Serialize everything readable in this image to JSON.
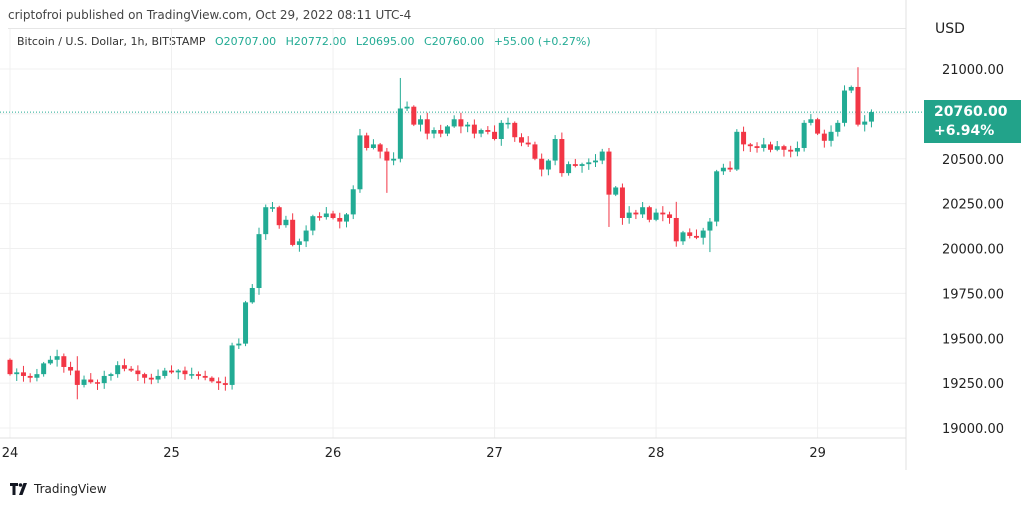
{
  "header": {
    "published": "criptofroi published on TradingView.com, Oct 29, 2022 08:11 UTC-4",
    "symbol": "Bitcoin / U.S. Dollar, 1h, BITSTAMP",
    "open": "O20707.00",
    "high": "H20772.00",
    "low": "L20695.00",
    "close": "C20760.00",
    "change": "+55.00 (+0.27%)"
  },
  "price_axis": {
    "currency": "USD"
  },
  "last_price": {
    "price": "20760.00",
    "change_pct": "+6.94%"
  },
  "footer": {
    "brand": "TradingView"
  },
  "colors": {
    "up": "#22ab94",
    "down": "#f23645",
    "grid": "#f0f0f0",
    "last_line": "#22ab94"
  },
  "chart_data": {
    "type": "candlestick",
    "title": "Bitcoin / U.S. Dollar, 1h, BITSTAMP",
    "x_unit": "hour index from Oct 24 00:00",
    "ylim": [
      18900,
      21200
    ],
    "y_ticks": [
      19000,
      19250,
      19500,
      19750,
      20000,
      20250,
      20500,
      20750,
      21000
    ],
    "y_tick_labels": [
      "19000.00",
      "19250.00",
      "19500.00",
      "19750.00",
      "20000.00",
      "20250.00",
      "20500.00",
      "20750.00",
      "21000.00"
    ],
    "x_ticks": [
      0,
      24,
      48,
      72,
      96,
      120
    ],
    "x_tick_labels": [
      "24",
      "25",
      "26",
      "27",
      "28",
      "29"
    ],
    "last_price": 20760,
    "first_open": 19380,
    "closes": [
      19300,
      19310,
      19290,
      19280,
      19300,
      19360,
      19380,
      19400,
      19340,
      19320,
      19240,
      19270,
      19255,
      19250,
      19290,
      19300,
      19350,
      19330,
      19320,
      19300,
      19280,
      19270,
      19290,
      19320,
      19310,
      19320,
      19300,
      19300,
      19290,
      19280,
      19260,
      19250,
      19240,
      19460,
      19470,
      19700,
      19780,
      20080,
      20230,
      20230,
      20130,
      20160,
      20020,
      20040,
      20100,
      20180,
      20175,
      20195,
      20170,
      20150,
      20190,
      20330,
      20630,
      20560,
      20580,
      20540,
      20490,
      20500,
      20780,
      20790,
      20690,
      20720,
      20640,
      20660,
      20640,
      20680,
      20720,
      20680,
      20690,
      20640,
      20660,
      20650,
      20610,
      20700,
      20700,
      20620,
      20590,
      20580,
      20500,
      20440,
      20490,
      20610,
      20420,
      20470,
      20460,
      20470,
      20480,
      20490,
      20540,
      20300,
      20340,
      20170,
      20200,
      20190,
      20230,
      20160,
      20200,
      20190,
      20170,
      20040,
      20090,
      20070,
      20060,
      20100,
      20150,
      20430,
      20450,
      20440,
      20650,
      20580,
      20570,
      20560,
      20580,
      20550,
      20570,
      20550,
      20540,
      20560,
      20700,
      20720,
      20640,
      20600,
      20650,
      20700,
      20880,
      20900,
      20690,
      20707,
      20760
    ],
    "big_wicks": {
      "10": [
        19400,
        19160
      ],
      "58": [
        20950,
        20480
      ],
      "89": [
        20560,
        20120
      ],
      "99": [
        20260,
        20010
      ],
      "104": [
        20170,
        19980
      ],
      "126": [
        21010,
        20680
      ],
      "56": [
        20560,
        20310
      ]
    }
  }
}
